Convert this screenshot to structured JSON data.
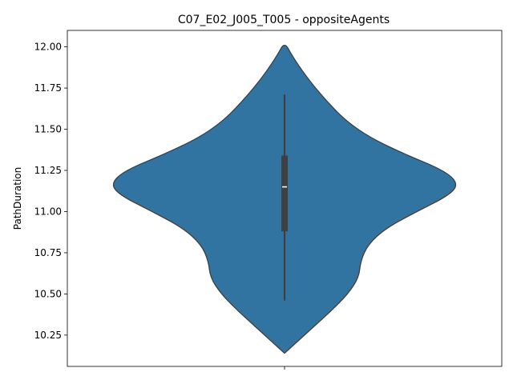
{
  "chart_data": {
    "type": "violin",
    "title": "C07_E02_J005_T005 - oppositeAgents",
    "xlabel": "",
    "ylabel": "PathDuration",
    "ylim": [
      10.06,
      12.1
    ],
    "yticks": [
      10.25,
      10.5,
      10.75,
      11.0,
      11.25,
      11.5,
      11.75,
      12.0
    ],
    "ytick_labels": [
      "10.25",
      "10.50",
      "10.75",
      "11.00",
      "11.25",
      "11.50",
      "11.75",
      "12.00"
    ],
    "xtick_labels": [
      ""
    ],
    "series": [
      {
        "color": "#3274a1",
        "edge_color": "#3f3f3f",
        "density_profile": [
          [
            10.14,
            0.0
          ],
          [
            10.2,
            0.06
          ],
          [
            10.3,
            0.16
          ],
          [
            10.4,
            0.26
          ],
          [
            10.5,
            0.35
          ],
          [
            10.6,
            0.41
          ],
          [
            10.7,
            0.42
          ],
          [
            10.8,
            0.46
          ],
          [
            10.9,
            0.56
          ],
          [
            11.0,
            0.73
          ],
          [
            11.1,
            0.91
          ],
          [
            11.17,
            0.96
          ],
          [
            11.25,
            0.88
          ],
          [
            11.35,
            0.66
          ],
          [
            11.45,
            0.47
          ],
          [
            11.55,
            0.34
          ],
          [
            11.65,
            0.25
          ],
          [
            11.75,
            0.17
          ],
          [
            11.85,
            0.1
          ],
          [
            11.95,
            0.04
          ],
          [
            12.03,
            0.0
          ]
        ],
        "whisker_low": 10.46,
        "whisker_high": 11.71,
        "q1": 10.88,
        "median": 11.15,
        "q3": 11.34
      }
    ]
  }
}
